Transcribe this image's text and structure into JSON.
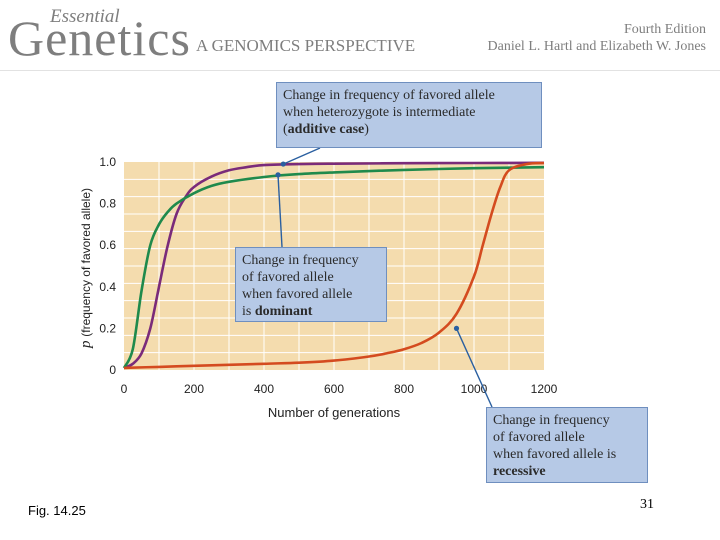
{
  "header": {
    "brand_small": "Essential",
    "brand_large": "Genetics",
    "subtitle": "A GENOMICS PERSPECTIVE",
    "edition": "Fourth Edition",
    "authors": "Daniel L. Hartl and Elizabeth W. Jones"
  },
  "footer": {
    "fig_label": "Fig. 14.25",
    "page_number": "31"
  },
  "colors": {
    "plot_bg": "#f4dcae",
    "grid": "#ffffff",
    "additive": "#7a2b7a",
    "dominant": "#1f8a4c",
    "recessive": "#d44b1f",
    "callout_bg": "#b6c9e6",
    "callout_border": "#6f8fbf"
  },
  "chart_data": {
    "type": "line",
    "xlabel": "Number of generations",
    "ylabel_symbol": "p",
    "ylabel_rest": "(frequency of favored allele)",
    "xlim": [
      0,
      1200
    ],
    "ylim": [
      0,
      1.0
    ],
    "x_ticks": [
      0,
      200,
      400,
      600,
      800,
      1000,
      1200
    ],
    "x_tick_labels": [
      "0",
      "200",
      "400",
      "600",
      "800",
      "1000",
      "1200"
    ],
    "y_ticks": [
      0,
      0.2,
      0.4,
      0.6,
      0.8,
      1.0
    ],
    "y_tick_labels": [
      "0",
      "0.2",
      "0.4",
      "0.6",
      "0.8",
      "1.0"
    ],
    "grid": true,
    "series": [
      {
        "key": "additive",
        "x": [
          0,
          25,
          50,
          75,
          100,
          125,
          150,
          175,
          200,
          250,
          300,
          350,
          400,
          500,
          600,
          800,
          1000,
          1200
        ],
        "y": [
          0.01,
          0.03,
          0.08,
          0.2,
          0.4,
          0.6,
          0.75,
          0.83,
          0.88,
          0.93,
          0.96,
          0.975,
          0.985,
          0.99,
          0.992,
          0.994,
          0.995,
          0.996
        ]
      },
      {
        "key": "dominant",
        "x": [
          0,
          25,
          50,
          75,
          100,
          125,
          150,
          200,
          250,
          300,
          400,
          500,
          600,
          800,
          1000,
          1200
        ],
        "y": [
          0.01,
          0.1,
          0.38,
          0.6,
          0.7,
          0.76,
          0.8,
          0.85,
          0.885,
          0.905,
          0.928,
          0.942,
          0.95,
          0.962,
          0.97,
          0.975
        ]
      },
      {
        "key": "recessive",
        "x": [
          0,
          100,
          200,
          300,
          400,
          500,
          600,
          700,
          750,
          800,
          850,
          900,
          950,
          1000,
          1025,
          1050,
          1075,
          1100,
          1150,
          1200
        ],
        "y": [
          0.01,
          0.015,
          0.02,
          0.025,
          0.03,
          0.035,
          0.045,
          0.065,
          0.08,
          0.1,
          0.13,
          0.18,
          0.27,
          0.45,
          0.6,
          0.75,
          0.88,
          0.96,
          0.99,
          0.995
        ]
      }
    ],
    "annotations": [
      {
        "key": "additive",
        "line1": "Change in frequency of favored allele",
        "line2": "when heterozygote is intermediate",
        "line3_pre": "(",
        "line3_bold": "additive case",
        "line3_post": ")",
        "pointer_x": 455,
        "pointer_y": 0.99
      },
      {
        "key": "dominant",
        "line1": "Change in frequency",
        "line2": "of favored allele",
        "line3": "when favored allele",
        "line4_pre": "is ",
        "line4_bold": "dominant",
        "pointer_x": 440,
        "pointer_y": 0.938
      },
      {
        "key": "recessive",
        "line1": "Change in frequency",
        "line2": "of favored allele",
        "line3": "when favored allele is",
        "line4_bold": "recessive",
        "pointer_x": 950,
        "pointer_y": 0.2
      }
    ]
  }
}
